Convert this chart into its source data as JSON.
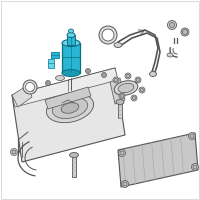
{
  "background_color": "#ffffff",
  "line_color": "#888888",
  "dark_line": "#555555",
  "highlight_fill": "#29b6d4",
  "highlight_edge": "#1a8fa8",
  "highlight_dark": "#0d6e82",
  "highlight_light": "#6dd5ea",
  "figsize": [
    2.0,
    2.0
  ],
  "dpi": 100,
  "tank_face": "#e6e6e6",
  "tank_inner": "#d8d8d8",
  "part_face": "#d0d0d0",
  "part_edge": "#777777",
  "skid_face": "#c8c8c8",
  "bolt_face": "#bbbbbb"
}
